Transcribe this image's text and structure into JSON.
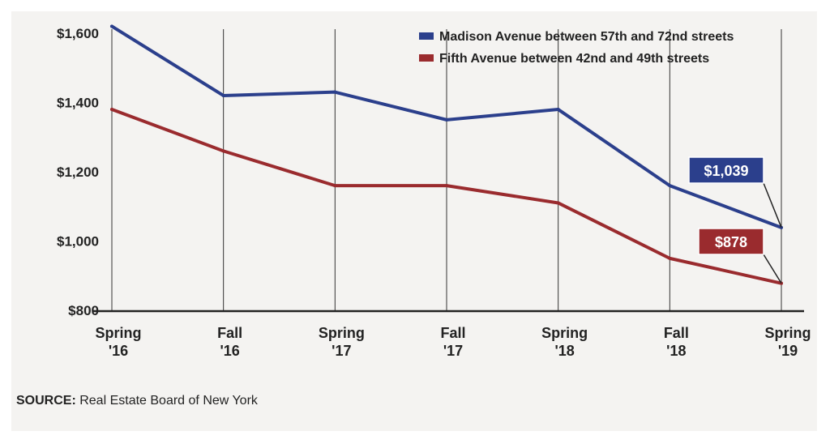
{
  "chart_data": {
    "type": "line",
    "categories": [
      [
        "Spring",
        "'16"
      ],
      [
        "Fall",
        "'16"
      ],
      [
        "Spring",
        "'17"
      ],
      [
        "Fall",
        "'17"
      ],
      [
        "Spring",
        "'18"
      ],
      [
        "Fall",
        "'18"
      ],
      [
        "Spring",
        "'19"
      ]
    ],
    "ylim": [
      800,
      1600
    ],
    "yticks": [
      "$1,600",
      "$1,400",
      "$1,200",
      "$1,000",
      "$800"
    ],
    "ytick_values": [
      1600,
      1400,
      1200,
      1000,
      800
    ],
    "grid": "vertical",
    "legend_position": "top-right",
    "series": [
      {
        "name": "Madison Avenue between 57th and 72nd streets",
        "color": "#2b3f8c",
        "values": [
          1620,
          1420,
          1430,
          1350,
          1380,
          1160,
          1039
        ],
        "end_label": "$1,039"
      },
      {
        "name": "Fifth Avenue between 42nd and 49th streets",
        "color": "#9a2b2e",
        "values": [
          1380,
          1260,
          1160,
          1160,
          1110,
          950,
          878
        ],
        "end_label": "$878"
      }
    ]
  },
  "source": {
    "label": "SOURCE:",
    "text": " Real Estate Board of New York"
  }
}
